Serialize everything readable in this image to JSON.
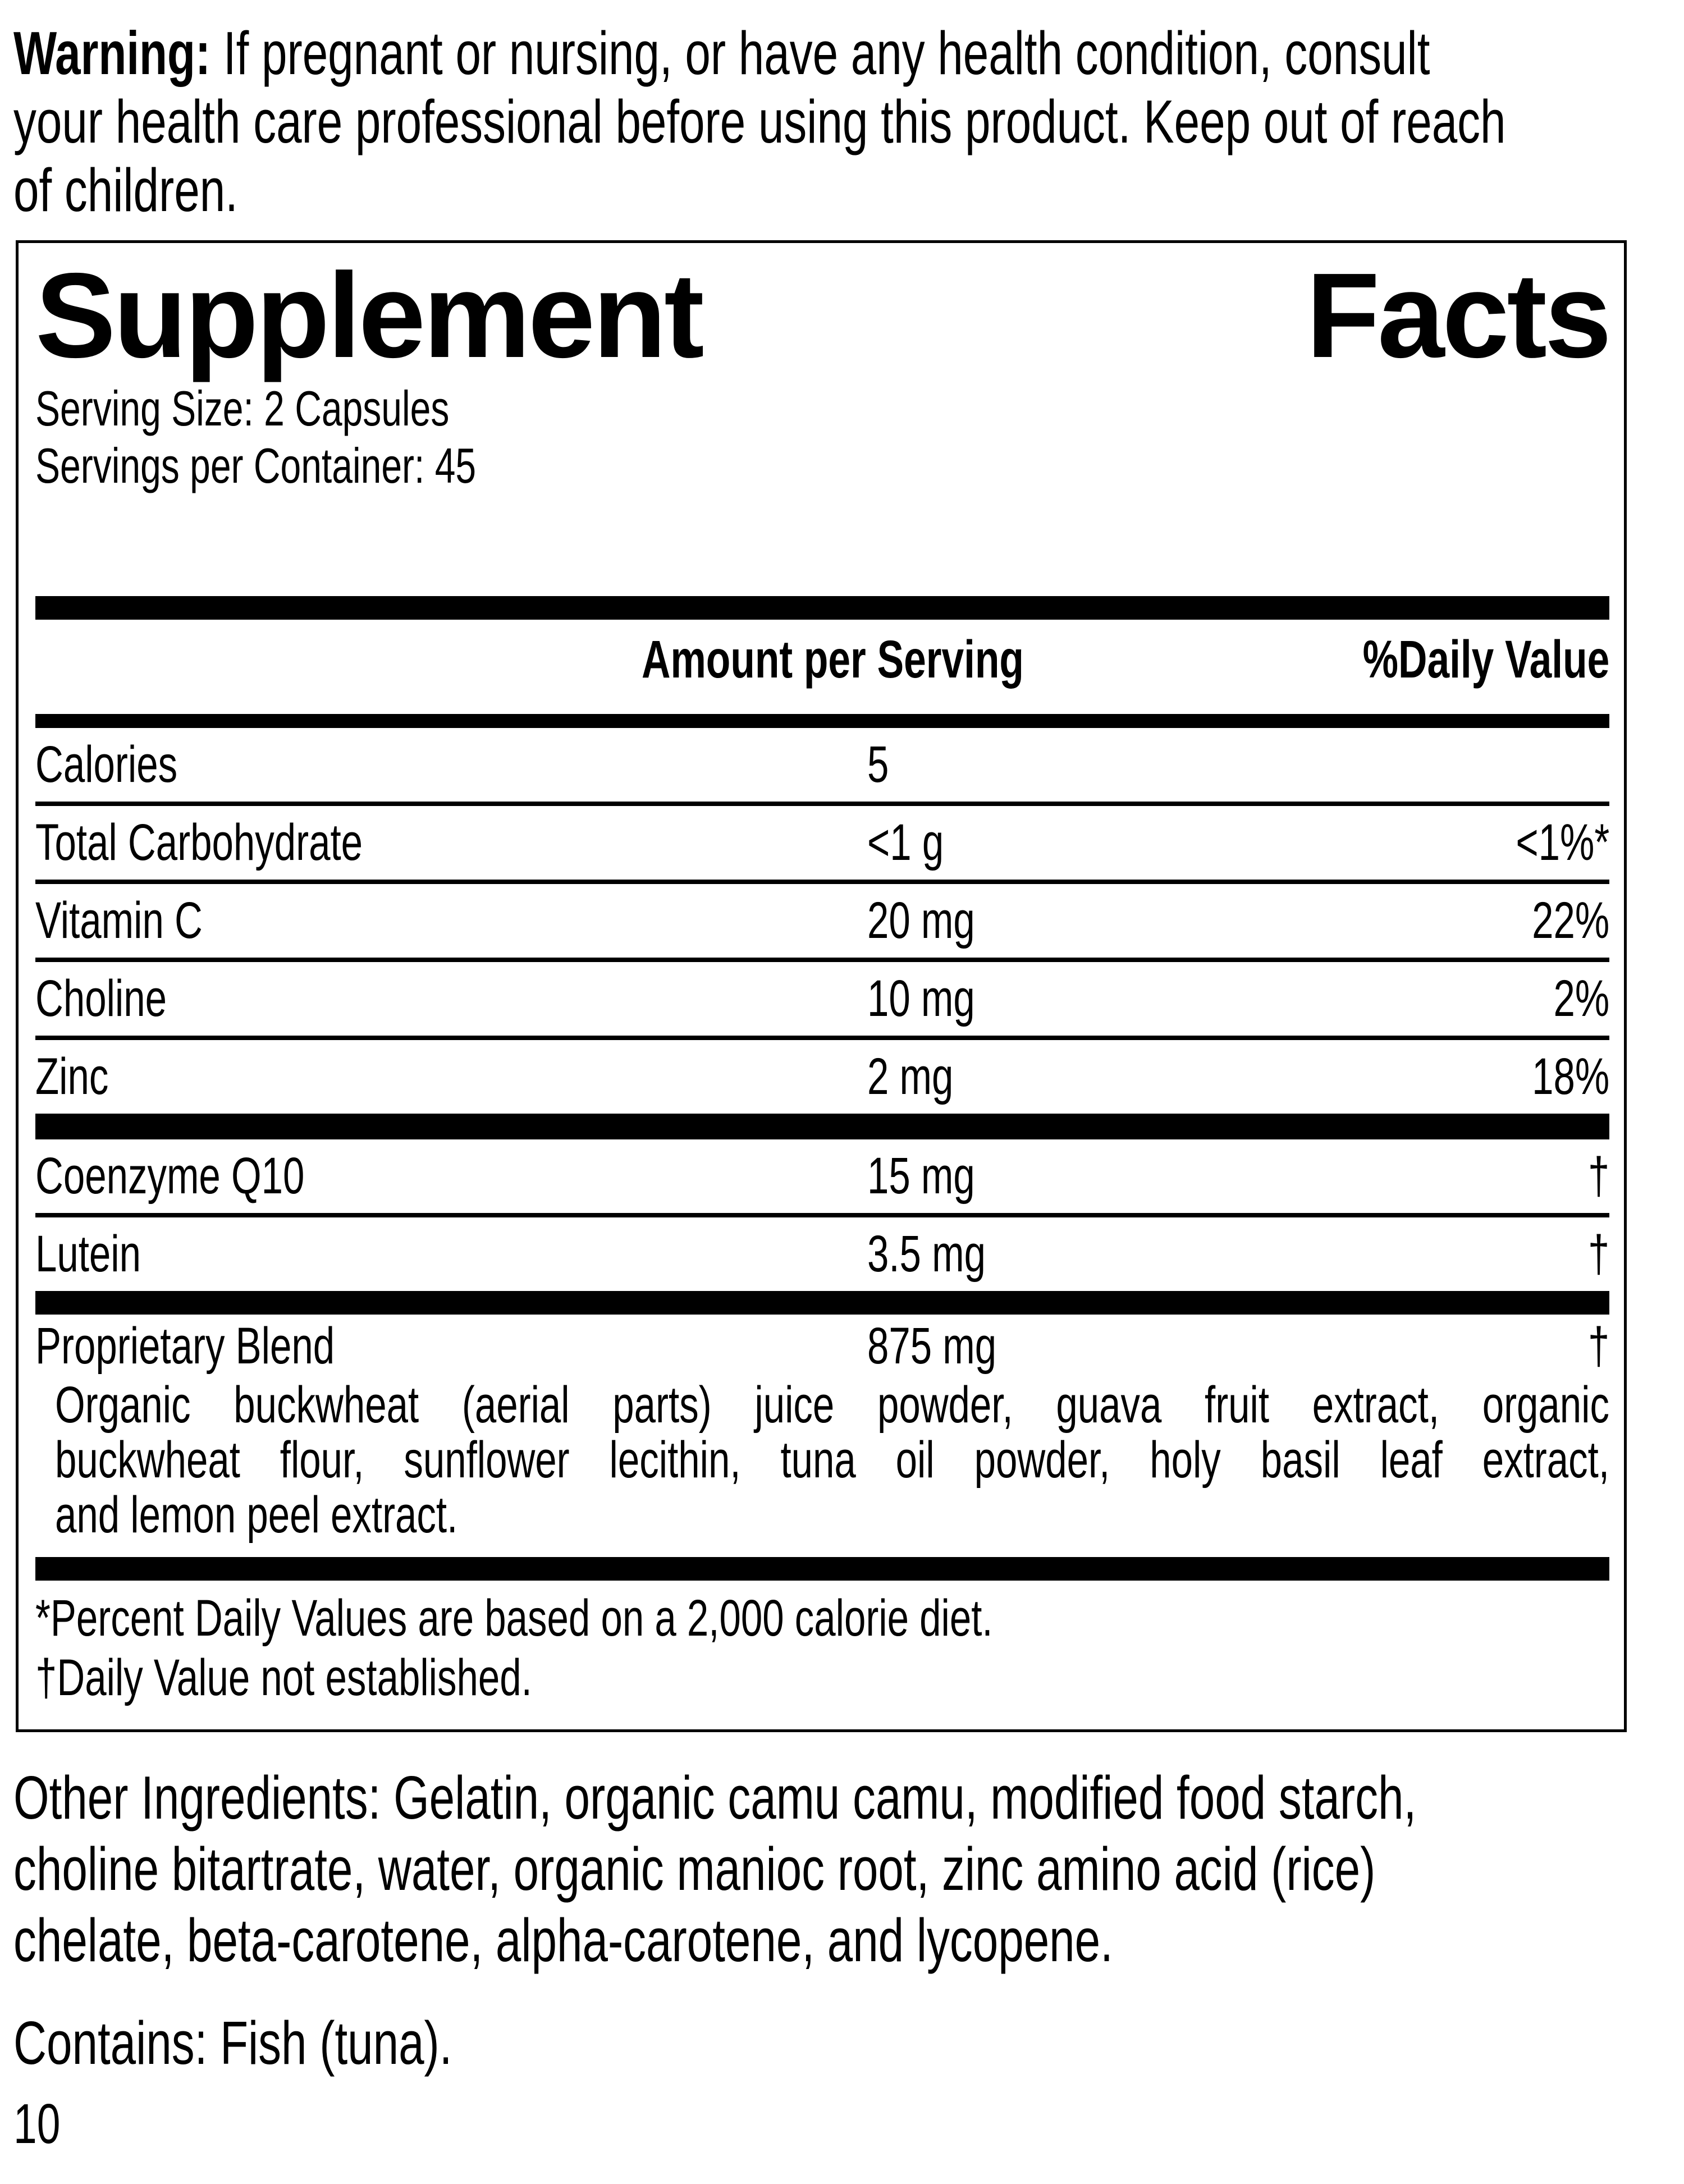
{
  "colors": {
    "ink": "#000000",
    "paper": "#ffffff"
  },
  "warning": {
    "label": "Warning: ",
    "lines": [
      "If pregnant or nursing, or have any health condition, consult",
      "your health care professional before using this product. Keep out of reach",
      "of children."
    ]
  },
  "panel": {
    "title_word1": "Supplement",
    "title_word2": "Facts",
    "serving_size": "Serving Size: 2 Capsules",
    "servings_per_container": "Servings per Container: 45",
    "columns": {
      "amount": "Amount per Serving",
      "dv": "%Daily Value"
    },
    "rows": [
      {
        "name": "Calories",
        "amount": "5",
        "dv": ""
      },
      {
        "name": "Total Carbohydrate",
        "amount": "<1 g",
        "dv": "<1%*"
      },
      {
        "name": "Vitamin C",
        "amount": "20 mg",
        "dv": "22%"
      },
      {
        "name": "Choline",
        "amount": "10 mg",
        "dv": "2%"
      },
      {
        "name": "Zinc",
        "amount": "2 mg",
        "dv": "18%"
      },
      {
        "name": "Coenzyme Q10",
        "amount": "15 mg",
        "dv": "†"
      },
      {
        "name": "Lutein",
        "amount": "3.5 mg",
        "dv": "†"
      },
      {
        "name": "Proprietary Blend",
        "amount": "875 mg",
        "dv": "†"
      }
    ],
    "proprietary_blend_lines": [
      "Organic buckwheat (aerial parts) juice powder, guava fruit extract, organic",
      "buckwheat flour, sunflower lecithin, tuna oil powder, holy basil leaf extract,",
      "and lemon peel extract."
    ],
    "footnotes": [
      "*Percent Daily Values are based on a 2,000 calorie diet.",
      "†Daily Value not established."
    ]
  },
  "other_ingredients_lines": [
    "Other Ingredients: Gelatin, organic camu camu, modified food starch,",
    "choline bitartrate, water, organic manioc root, zinc amino acid (rice)",
    "chelate, beta-carotene, alpha-carotene, and lycopene."
  ],
  "contains": "Contains: Fish (tuna).",
  "page_number": "10"
}
